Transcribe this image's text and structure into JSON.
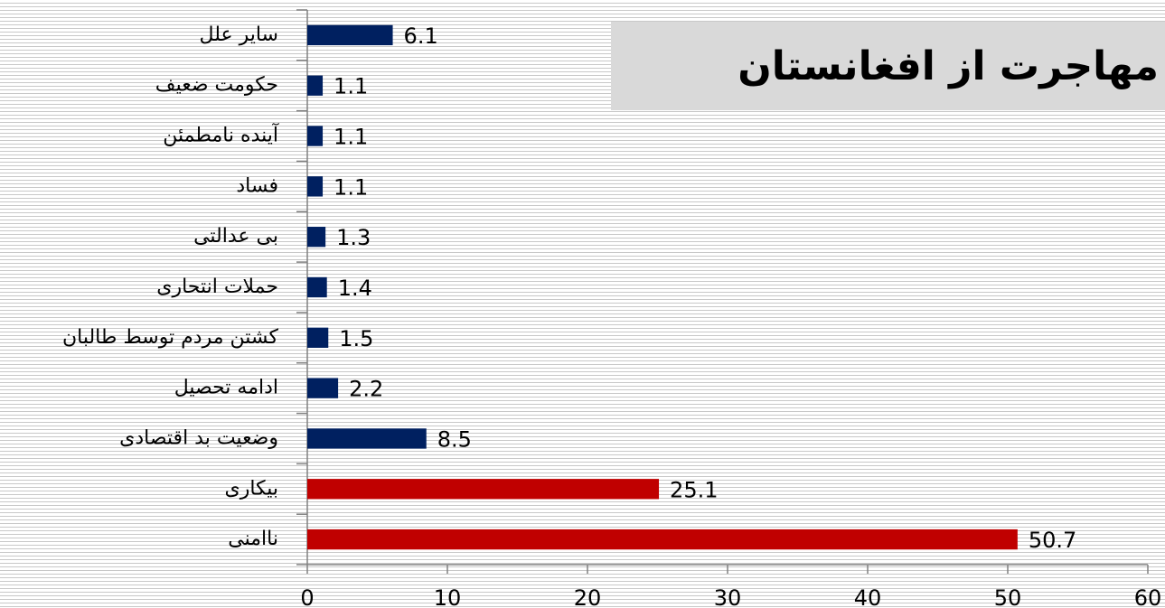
{
  "chart_data": {
    "type": "barh",
    "title": "مهاجرت از افغانستان",
    "categories": [
      "سایر علل",
      "حکومت ضعیف",
      "آینده نامطمئن",
      "فساد",
      "بی عدالتی",
      "حملات انتحاری",
      "کشتن مردم توسط طالبان",
      "ادامه تحصیل",
      "وضعیت بد اقتصادی",
      "بیکاری",
      "ناامنی"
    ],
    "values": [
      6.1,
      1.1,
      1.1,
      1.1,
      1.3,
      1.4,
      1.5,
      2.2,
      8.5,
      25.1,
      50.7
    ],
    "colors": [
      "#002060",
      "#002060",
      "#002060",
      "#002060",
      "#002060",
      "#002060",
      "#002060",
      "#002060",
      "#002060",
      "#c00000",
      "#c00000"
    ],
    "xlim": [
      0,
      60
    ],
    "xticks": [
      0,
      10,
      20,
      30,
      40,
      50,
      60
    ]
  }
}
